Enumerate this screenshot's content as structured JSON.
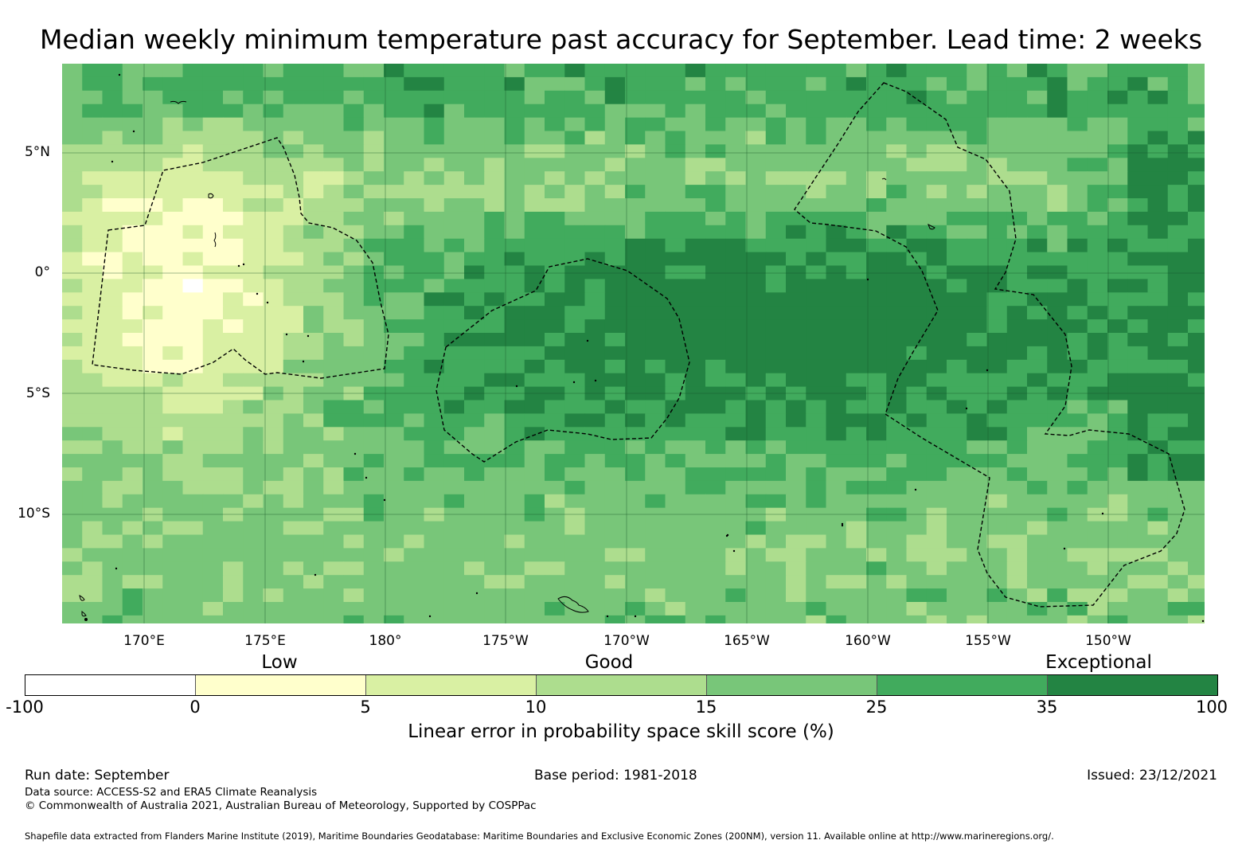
{
  "title": "Median weekly minimum temperature past accuracy for September. Lead time: 2 weeks",
  "map": {
    "lat_labels": [
      "5°N",
      "0°",
      "5°S",
      "10°S"
    ],
    "lon_labels": [
      "170°E",
      "175°E",
      "180°",
      "175°W",
      "170°W",
      "165°W",
      "160°W",
      "155°W",
      "150°W"
    ],
    "extent": {
      "lon_min": 166.6,
      "lon_max": 213.8,
      "lat_min": -14.6,
      "lat_max": 8.6
    },
    "land_note": "Small Pacific island coastlines drawn as thin black outlines",
    "eez_boundary_style": "dashed black"
  },
  "colorbar": {
    "categories": [
      {
        "label": "Low",
        "position": "left"
      },
      {
        "label": "Good",
        "position": "middle"
      },
      {
        "label": "Exceptional",
        "position": "right"
      }
    ],
    "ticks": [
      "-100",
      "0",
      "5",
      "10",
      "15",
      "25",
      "35",
      "100"
    ],
    "colors": [
      "#ffffff",
      "#ffffcc",
      "#d9f0a3",
      "#addd8e",
      "#78c679",
      "#41ab5d",
      "#238443"
    ],
    "label": "Linear error in probability space skill score (%)"
  },
  "footer": {
    "run_date": "Run date: September",
    "base_period": "Base period: 1981-2018",
    "issued": "Issued: 23/12/2021",
    "data_source": "Data source: ACCESS-S2 and ERA5 Climate Reanalysis",
    "copyright": "© Commonwealth of Australia 2021, Australian Bureau of Meteorology, Supported by COSPPac",
    "shapefile": "Shapefile data extracted from Flanders Marine Institute (2019), Maritime Boundaries Geodatabase: Maritime Boundaries and Exclusive Economic Zones (200NM), version 11. Available online at http://www.marineregions.org/."
  }
}
